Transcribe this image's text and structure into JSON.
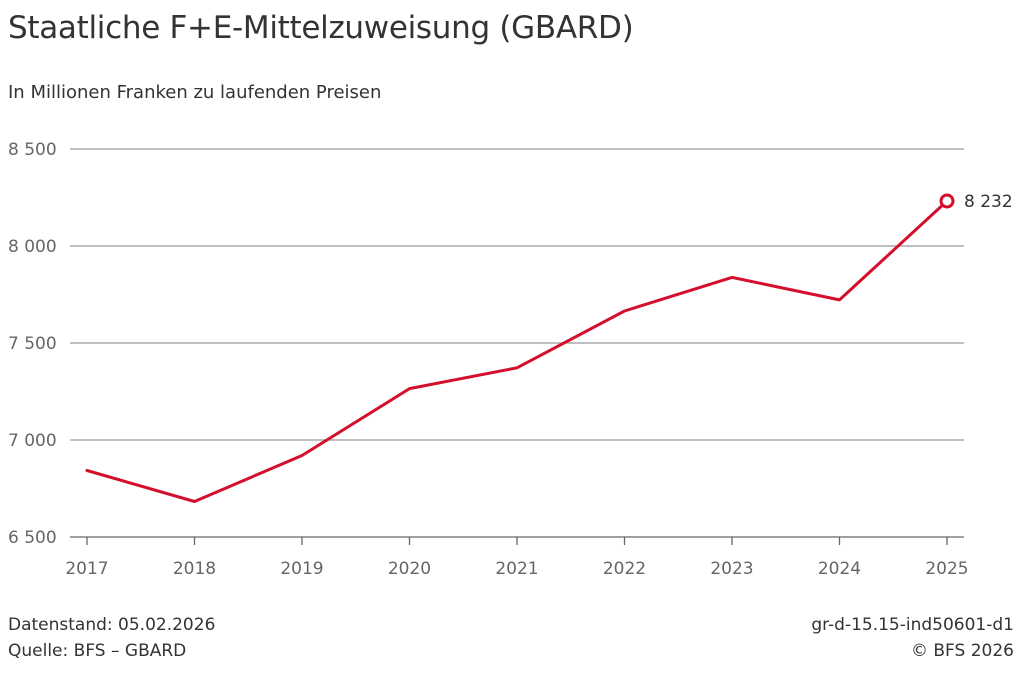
{
  "header": {
    "title": "Staatliche F+E-Mittelzuweisung (GBARD)",
    "subtitle": "In Millionen Franken zu laufenden Preisen"
  },
  "footer": {
    "datenstand": "Datenstand: 05.02.2026",
    "quelle": "Quelle: BFS – GBARD",
    "code": "gr-d-15.15-ind50601-d1",
    "copyright": "© BFS 2026"
  },
  "chart_data": {
    "type": "line",
    "title": "Staatliche F+E-Mittelzuweisung (GBARD)",
    "subtitle": "In Millionen Franken zu laufenden Preisen",
    "xlabel": "",
    "ylabel": "",
    "categories": [
      "2017",
      "2018",
      "2019",
      "2020",
      "2021",
      "2022",
      "2023",
      "2024",
      "2025"
    ],
    "series": [
      {
        "name": "GBARD",
        "values": [
          6843,
          6683,
          6920,
          7265,
          7372,
          7665,
          7838,
          7722,
          8232
        ]
      }
    ],
    "ylim": [
      6500,
      8500
    ],
    "yticks": [
      6500,
      7000,
      7500,
      8000,
      8500
    ],
    "ytick_labels": [
      "6 500",
      "7 000",
      "7 500",
      "8 000",
      "8 500"
    ],
    "grid": true,
    "annotation": {
      "category": "2025",
      "value": 8232,
      "label": "8 232"
    },
    "colors": {
      "line": "#d40f2b",
      "grid": "#999999",
      "axis": "#666666"
    }
  }
}
